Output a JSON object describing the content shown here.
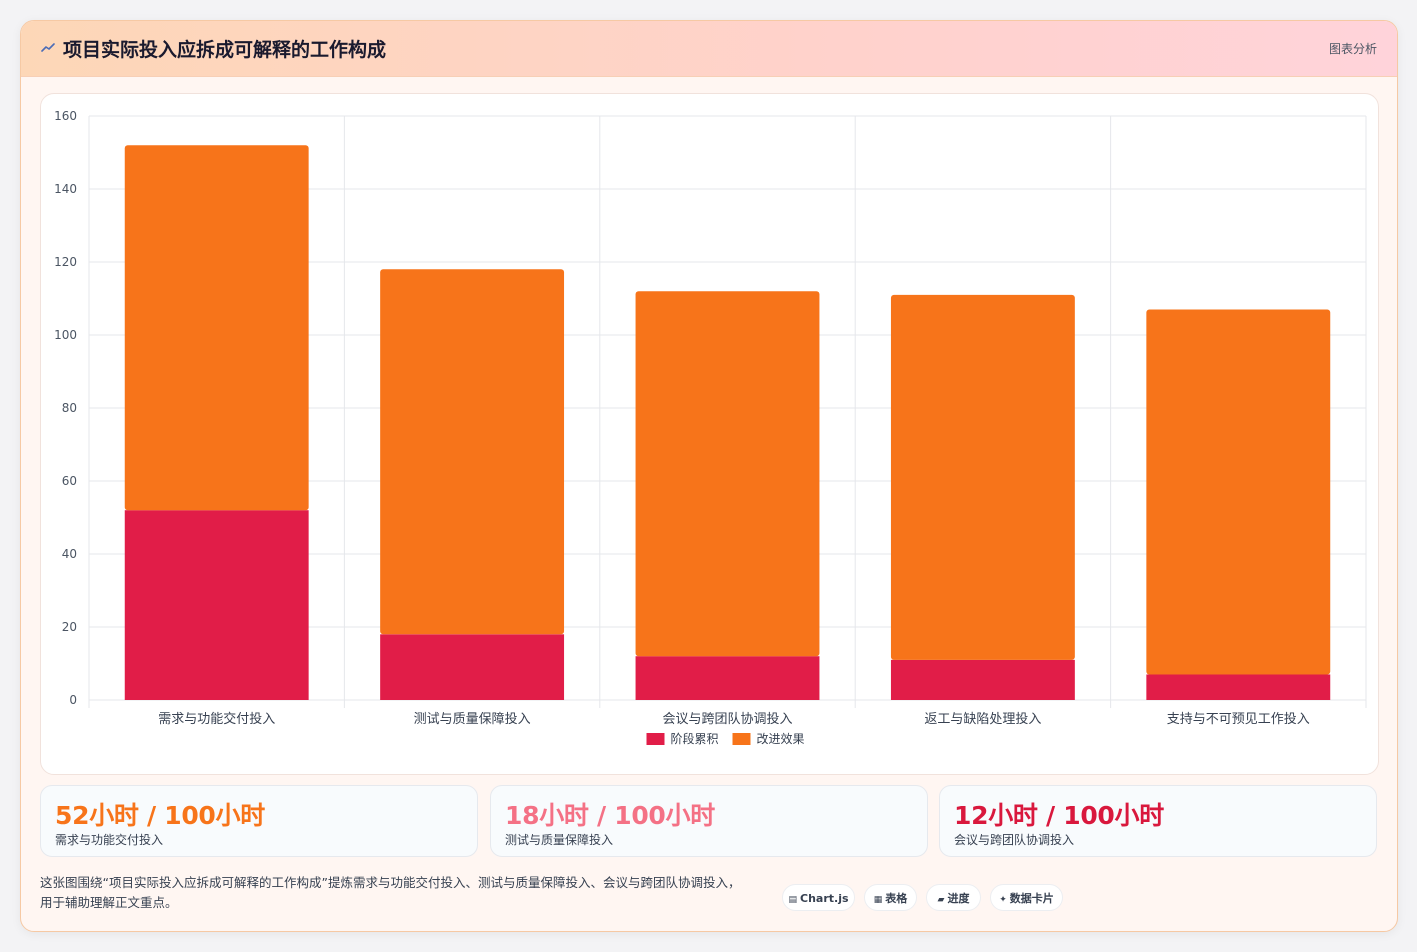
{
  "header": {
    "title": "项目实际投入应拆成可解释的工作构成",
    "link_label": "图表分析"
  },
  "chart_data": {
    "type": "bar",
    "stacked": true,
    "categories": [
      "需求与功能交付投入",
      "测试与质量保障投入",
      "会议与跨团队协调投入",
      "返工与缺陷处理投入",
      "支持与不可预见工作投入"
    ],
    "series": [
      {
        "name": "阶段累积",
        "color": "#e11d48",
        "values": [
          52,
          18,
          12,
          11,
          7
        ]
      },
      {
        "name": "改进效果",
        "color": "#f7741a",
        "values": [
          100,
          100,
          100,
          100,
          100
        ]
      }
    ],
    "yticks": [
      0,
      20,
      40,
      60,
      80,
      100,
      120,
      140,
      160
    ],
    "ylim": [
      0,
      160
    ],
    "grid": true,
    "legend_position": "bottom"
  },
  "stats": [
    {
      "value": "52小时 / 100小时",
      "label": "需求与功能交付投入",
      "color": "#f7741a"
    },
    {
      "value": "18小时 / 100小时",
      "label": "测试与质量保障投入",
      "color": "#f47185"
    },
    {
      "value": "12小时 / 100小时",
      "label": "会议与跨团队协调投入",
      "color": "#d9183d"
    }
  ],
  "footer": {
    "line1": "这张图围绕“项目实际投入应拆成可解释的工作构成”提炼需求与功能交付投入、测试与质量保障投入、会议与跨团队协调投入，",
    "line2": "用于辅助理解正文重点。"
  },
  "chips": [
    {
      "icon": "▤",
      "label": "Chart.js",
      "icon_name": "chart-icon"
    },
    {
      "icon": "▦",
      "label": "表格",
      "icon_name": "table-icon"
    },
    {
      "icon": "▰",
      "label": "进度",
      "icon_name": "progress-icon"
    },
    {
      "icon": "✦",
      "label": "数据卡片",
      "icon_name": "sparkle-icon"
    }
  ]
}
